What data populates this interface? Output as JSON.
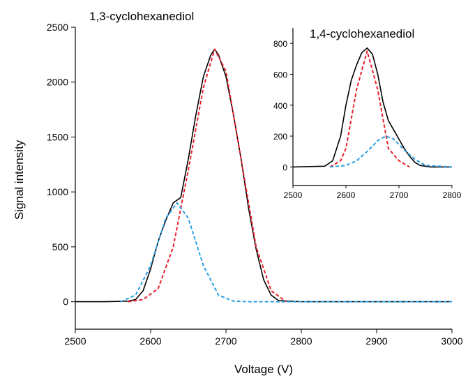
{
  "chart_data": [
    {
      "type": "line",
      "title": "1,3-cyclohexanediol",
      "xlabel": "Voltage (V)",
      "ylabel": "Signal intensity",
      "xlim": [
        2500,
        3000
      ],
      "ylim": [
        -250,
        2500
      ],
      "x_ticks": [
        2500,
        2600,
        2700,
        2800,
        2900,
        3000
      ],
      "y_ticks": [
        0,
        500,
        1000,
        1500,
        2000,
        2500
      ],
      "grid": false,
      "legend": "none",
      "series": [
        {
          "color": "#000000",
          "style": "solid",
          "x": [
            2500,
            2540,
            2570,
            2580,
            2590,
            2600,
            2610,
            2620,
            2630,
            2640,
            2650,
            2660,
            2670,
            2680,
            2685,
            2690,
            2700,
            2710,
            2720,
            2730,
            2740,
            2750,
            2760,
            2770,
            2800,
            2900,
            3000
          ],
          "y": [
            0,
            0,
            5,
            20,
            100,
            300,
            550,
            740,
            900,
            950,
            1300,
            1700,
            2050,
            2250,
            2300,
            2250,
            2050,
            1700,
            1300,
            850,
            480,
            200,
            60,
            10,
            0,
            0,
            0
          ]
        },
        {
          "color": "#e8202a",
          "style": "dashed",
          "x": [
            2570,
            2590,
            2610,
            2630,
            2650,
            2670,
            2685,
            2700,
            2720,
            2740,
            2760,
            2780
          ],
          "y": [
            0,
            20,
            120,
            500,
            1200,
            1950,
            2300,
            2100,
            1300,
            500,
            100,
            0
          ]
        },
        {
          "color": "#2a9ee0",
          "style": "dashed",
          "x": [
            2560,
            2580,
            2600,
            2620,
            2635,
            2650,
            2670,
            2690,
            2710,
            2730,
            3000
          ],
          "y": [
            0,
            60,
            330,
            760,
            900,
            760,
            330,
            60,
            5,
            0,
            0
          ]
        }
      ]
    },
    {
      "type": "line",
      "title": "1,4-cyclohexanediol",
      "xlim": [
        2500,
        2800
      ],
      "ylim": [
        -120,
        900
      ],
      "x_ticks": [
        2500,
        2600,
        2700,
        2800
      ],
      "y_ticks": [
        0,
        200,
        400,
        600,
        800
      ],
      "grid": false,
      "legend": "none",
      "series": [
        {
          "color": "#000000",
          "style": "solid",
          "x": [
            2500,
            2560,
            2575,
            2590,
            2600,
            2610,
            2620,
            2630,
            2640,
            2650,
            2660,
            2670,
            2680,
            2690,
            2700,
            2710,
            2720,
            2730,
            2740,
            2760,
            2800
          ],
          "y": [
            0,
            5,
            40,
            200,
            400,
            560,
            660,
            740,
            770,
            730,
            600,
            420,
            300,
            240,
            180,
            120,
            70,
            30,
            10,
            0,
            0
          ]
        },
        {
          "color": "#e8202a",
          "style": "dashed",
          "x": [
            2570,
            2590,
            2600,
            2620,
            2640,
            2660,
            2680,
            2700,
            2720
          ],
          "y": [
            0,
            40,
            120,
            500,
            750,
            500,
            120,
            40,
            0
          ]
        },
        {
          "color": "#2a9ee0",
          "style": "dashed",
          "x": [
            2570,
            2600,
            2620,
            2640,
            2660,
            2675,
            2690,
            2710,
            2730,
            2750,
            2800
          ],
          "y": [
            0,
            10,
            40,
            100,
            170,
            200,
            180,
            110,
            50,
            10,
            0
          ]
        }
      ]
    }
  ]
}
